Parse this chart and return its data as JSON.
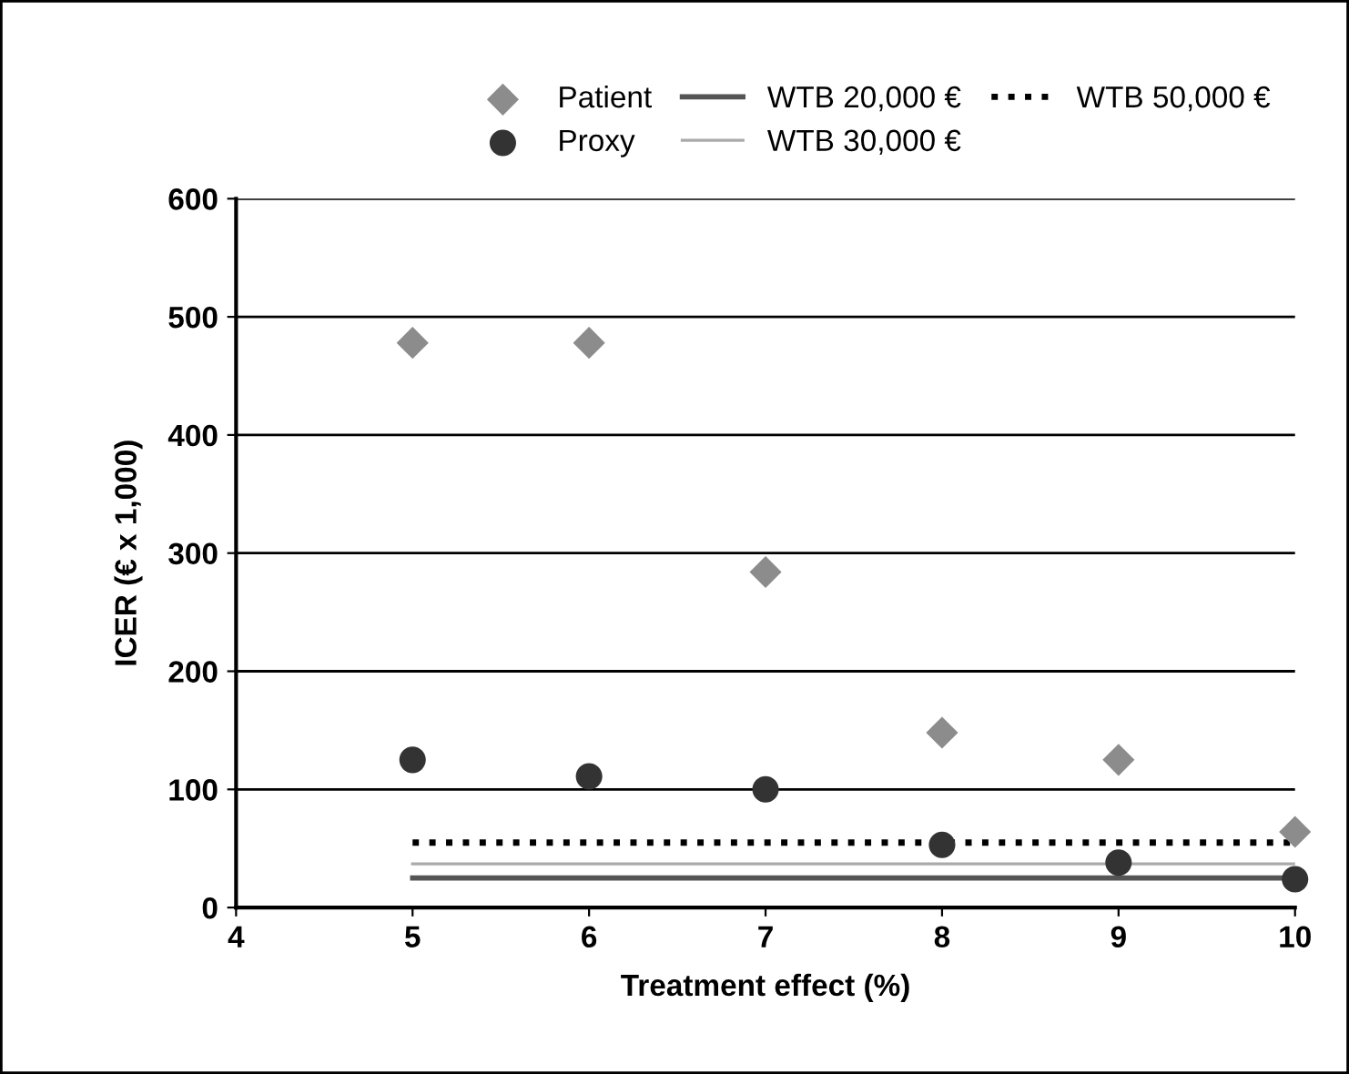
{
  "chart_data": {
    "type": "scatter",
    "xlabel": "Treatment effect (%)",
    "ylabel": "ICER (€ x 1,000)",
    "xlim": [
      4,
      10
    ],
    "xticks": [
      4,
      5,
      6,
      7,
      8,
      9,
      10
    ],
    "ylim": [
      0,
      600
    ],
    "yticks": [
      0,
      100,
      200,
      300,
      400,
      500,
      600
    ],
    "grid": "y",
    "legend": "top",
    "series": [
      {
        "name": "Patient",
        "marker": "diamond",
        "color": "#8c8c8c",
        "x": [
          5,
          6,
          7,
          8,
          9,
          10
        ],
        "values": [
          478,
          478,
          284,
          148,
          125,
          64
        ]
      },
      {
        "name": "Proxy",
        "marker": "circle",
        "color": "#333333",
        "x": [
          5,
          6,
          7,
          8,
          9,
          10
        ],
        "values": [
          125,
          111,
          100,
          53,
          38,
          24
        ]
      },
      {
        "name": "WTB 20,000 €",
        "type": "line",
        "line_style": "solid",
        "color": "#555555",
        "x": [
          5,
          10
        ],
        "values": [
          25,
          25
        ]
      },
      {
        "name": "WTB 30,000 €",
        "type": "line",
        "line_style": "solid",
        "color": "#aaaaaa",
        "x": [
          5,
          10
        ],
        "values": [
          37,
          37
        ]
      },
      {
        "name": "WTB 50,000 €",
        "type": "line",
        "line_style": "dotted",
        "color": "#000000",
        "x": [
          5,
          10
        ],
        "values": [
          55,
          55
        ]
      }
    ]
  }
}
